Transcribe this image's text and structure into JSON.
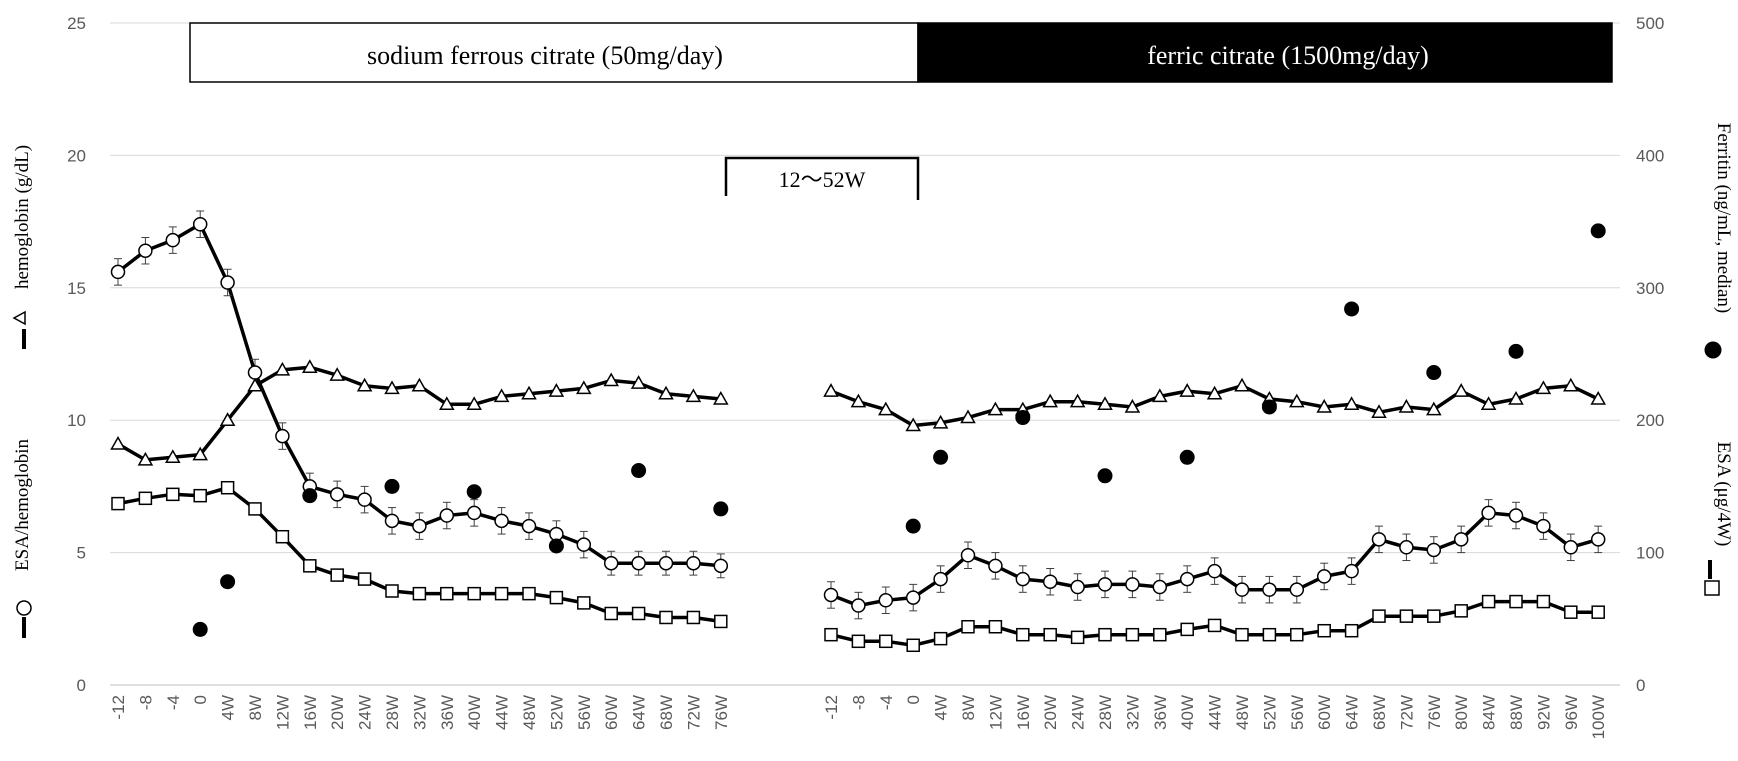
{
  "chart_data": {
    "type": "line",
    "banners": {
      "left": "sodium ferrous citrate (50mg/day)",
      "right": "ferric citrate (1500mg/day)"
    },
    "bracket_label": "12～52W",
    "axes": {
      "left": {
        "ylim": [
          0,
          25
        ],
        "ticks": [
          "0",
          "5",
          "10",
          "15",
          "20",
          "25"
        ],
        "label_upper": "hemoglobin (g/dL)",
        "label_lower": "ESA/hemoglobin"
      },
      "right": {
        "ylim": [
          0,
          500
        ],
        "ticks": [
          "0",
          "100",
          "200",
          "300",
          "400",
          "500"
        ],
        "label_upper": "Ferritin (ng/mL, median)",
        "label_lower": "ESA (μg/4W)"
      }
    },
    "grid": true,
    "panels": [
      {
        "name": "sodium ferrous citrate",
        "x": [
          "-12",
          "-8",
          "-4",
          "0",
          "4W",
          "8W",
          "12W",
          "16W",
          "20W",
          "24W",
          "28W",
          "32W",
          "36W",
          "40W",
          "44W",
          "48W",
          "52W",
          "56W",
          "60W",
          "64W",
          "68W",
          "72W",
          "76W"
        ],
        "hemoglobin": [
          9.1,
          8.5,
          8.6,
          8.7,
          10.0,
          11.3,
          11.9,
          12.0,
          11.7,
          11.3,
          11.2,
          11.3,
          10.6,
          10.6,
          10.9,
          11.0,
          11.1,
          11.2,
          11.5,
          11.4,
          11.0,
          10.9,
          10.8
        ],
        "esa_per_hemoglobin": [
          15.6,
          16.4,
          16.8,
          17.4,
          15.2,
          11.8,
          9.4,
          7.5,
          7.2,
          7.0,
          6.2,
          6.0,
          6.4,
          6.5,
          6.2,
          6.0,
          5.7,
          5.3,
          4.6,
          4.6,
          4.6,
          4.6,
          4.5
        ],
        "esa_per_hemoglobin_err": [
          0.5,
          0.5,
          0.5,
          0.5,
          0.5,
          0.5,
          0.5,
          0.5,
          0.5,
          0.5,
          0.5,
          0.5,
          0.5,
          0.5,
          0.5,
          0.5,
          0.5,
          0.5,
          0.45,
          0.45,
          0.45,
          0.45,
          0.45
        ],
        "esa": [
          137,
          141,
          144,
          143,
          149,
          133,
          112,
          90,
          83,
          80,
          71,
          69,
          69,
          69,
          69,
          69,
          66,
          62,
          54,
          54,
          51,
          51,
          48
        ],
        "ferritin_x": [
          "0",
          "4W",
          "16W",
          "28W",
          "40W",
          "52W",
          "64W",
          "76W"
        ],
        "ferritin": [
          42,
          78,
          143,
          150,
          146,
          105,
          162,
          133
        ]
      },
      {
        "name": "ferric citrate",
        "x": [
          "-12",
          "-8",
          "-4",
          "0",
          "4W",
          "8W",
          "12W",
          "16W",
          "20W",
          "24W",
          "28W",
          "32W",
          "36W",
          "40W",
          "44W",
          "48W",
          "52W",
          "56W",
          "60W",
          "64W",
          "68W",
          "72W",
          "76W",
          "80W",
          "84W",
          "88W",
          "92W",
          "96W",
          "100W"
        ],
        "hemoglobin": [
          11.1,
          10.7,
          10.4,
          9.8,
          9.9,
          10.1,
          10.4,
          10.4,
          10.7,
          10.7,
          10.6,
          10.5,
          10.9,
          11.1,
          11.0,
          11.3,
          10.8,
          10.7,
          10.5,
          10.6,
          10.3,
          10.5,
          10.4,
          11.1,
          10.6,
          10.8,
          11.2,
          11.3,
          10.8
        ],
        "esa_per_hemoglobin": [
          3.4,
          3.0,
          3.2,
          3.3,
          4.0,
          4.9,
          4.5,
          4.0,
          3.9,
          3.7,
          3.8,
          3.8,
          3.7,
          4.0,
          4.3,
          3.6,
          3.6,
          3.6,
          4.1,
          4.3,
          5.5,
          5.2,
          5.1,
          5.5,
          6.5,
          6.4,
          6.0,
          5.2,
          5.5
        ],
        "esa_per_hemoglobin_err": [
          0.5,
          0.5,
          0.5,
          0.5,
          0.5,
          0.5,
          0.5,
          0.5,
          0.5,
          0.5,
          0.5,
          0.5,
          0.5,
          0.5,
          0.5,
          0.5,
          0.5,
          0.5,
          0.5,
          0.5,
          0.5,
          0.5,
          0.5,
          0.5,
          0.5,
          0.5,
          0.5,
          0.5,
          0.5
        ],
        "esa": [
          38,
          33,
          33,
          30,
          35,
          44,
          44,
          38,
          38,
          36,
          38,
          38,
          38,
          42,
          45,
          38,
          38,
          38,
          41,
          41,
          52,
          52,
          52,
          56,
          63,
          63,
          63,
          55,
          55
        ],
        "ferritin_x": [
          "0",
          "4W",
          "16W",
          "28W",
          "40W",
          "52W",
          "64W",
          "76W",
          "88W",
          "100W"
        ],
        "ferritin": [
          120,
          172,
          202,
          158,
          172,
          210,
          284,
          236,
          252,
          343
        ]
      }
    ],
    "colors": {
      "line": "#000000",
      "grid": "#d9d9d9",
      "tick_text": "#595959"
    }
  }
}
